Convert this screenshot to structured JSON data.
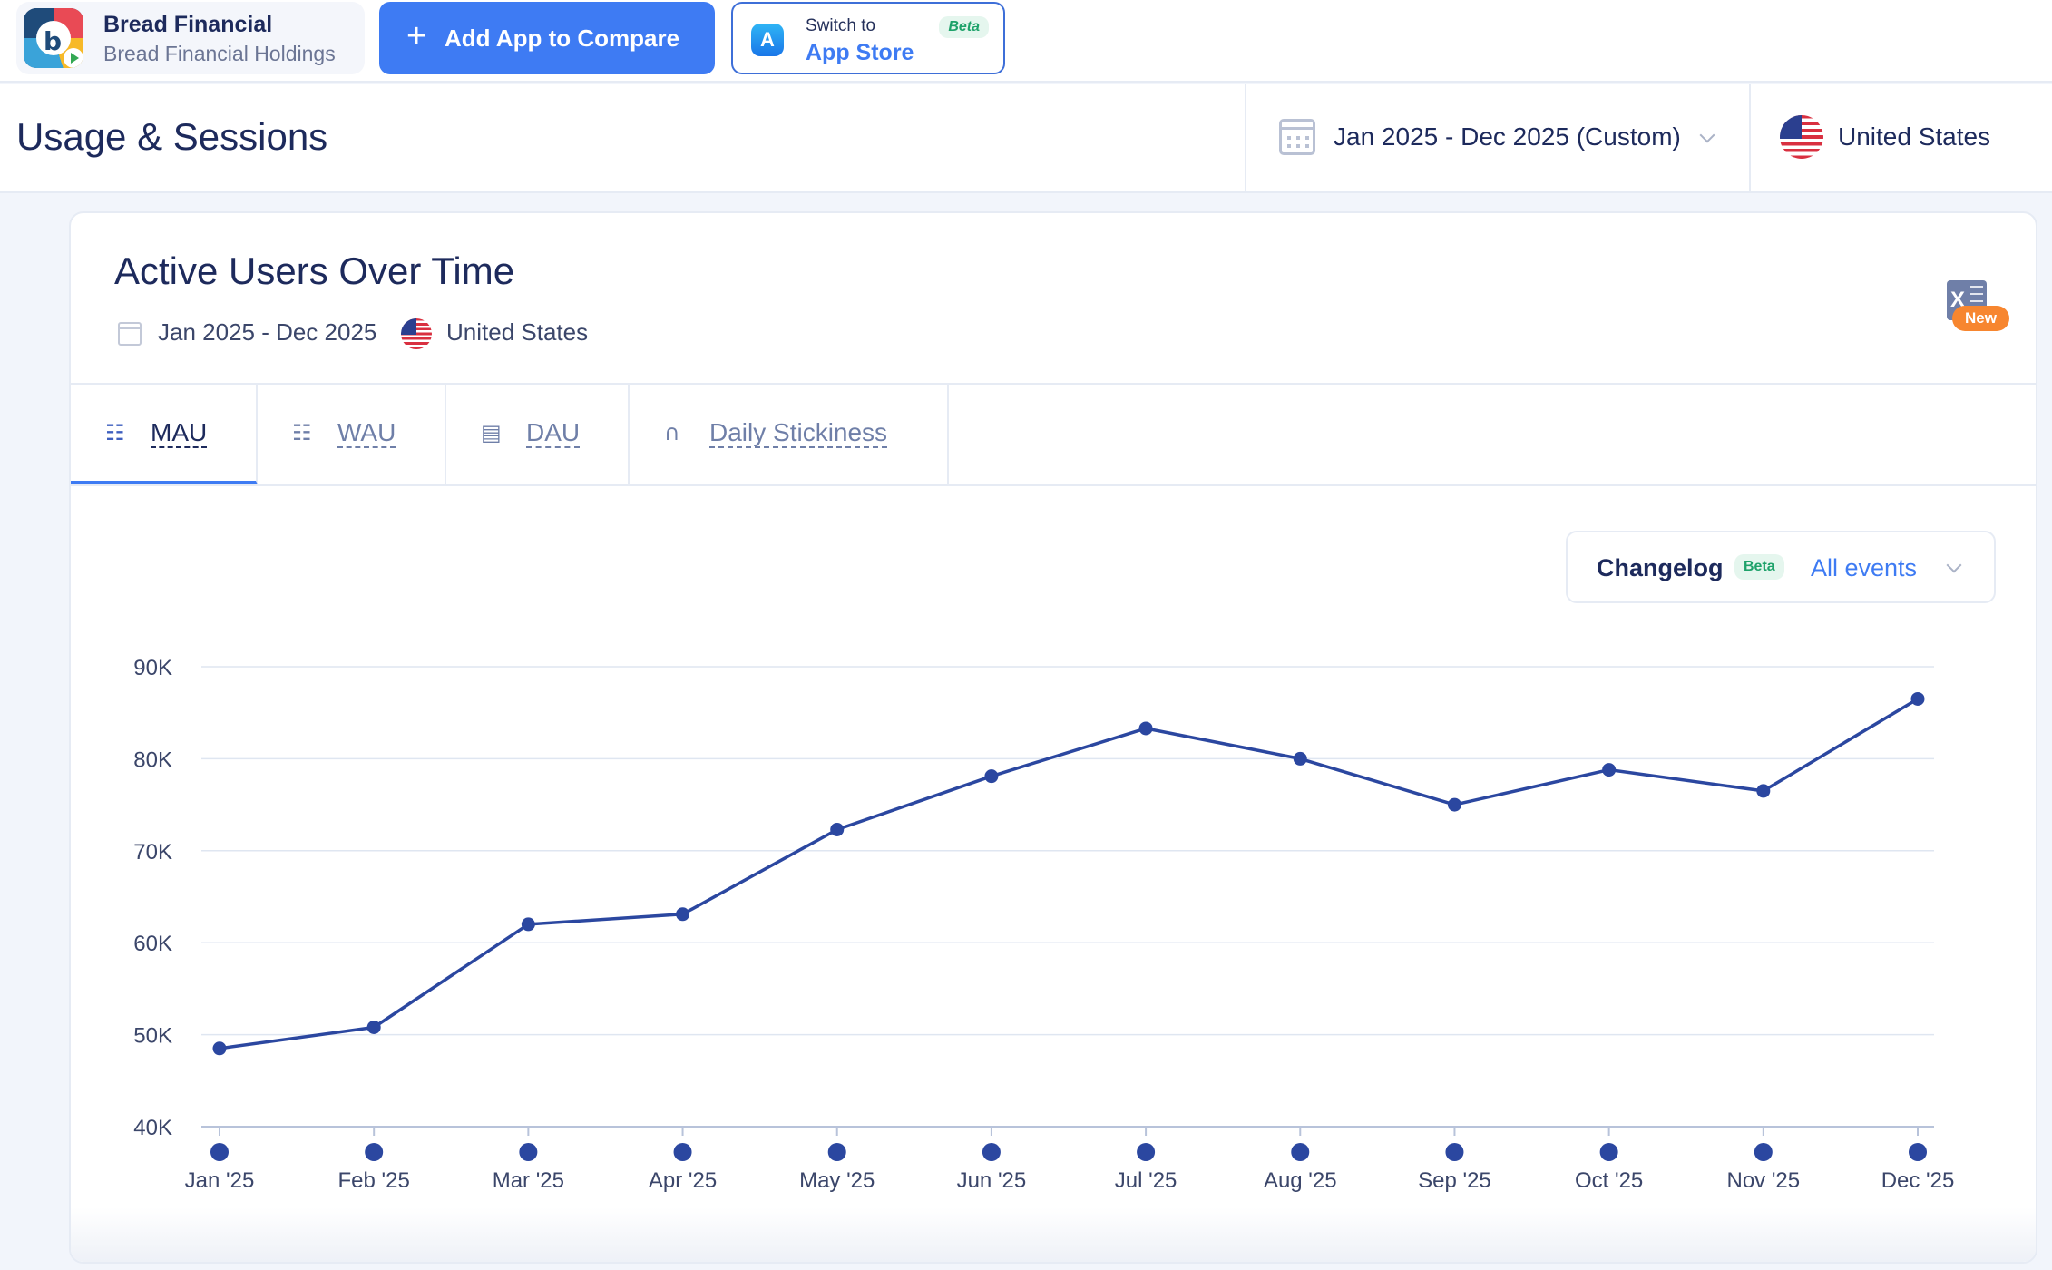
{
  "app": {
    "name": "Bread Financial",
    "developer": "Bread Financial Holdings"
  },
  "toolbar": {
    "add_label": "Add App to Compare",
    "switch_to": "Switch to",
    "switch_store": "App Store",
    "switch_badge": "Beta"
  },
  "header": {
    "title": "Usage & Sessions",
    "date_range": "Jan 2025 - Dec 2025 (Custom)",
    "country": "United States"
  },
  "card": {
    "title": "Active Users Over Time",
    "date_range": "Jan 2025 - Dec 2025",
    "country": "United States",
    "export_badge": "New",
    "tabs": [
      {
        "label": "MAU",
        "icon": "calendar-user-icon",
        "active": true
      },
      {
        "label": "WAU",
        "icon": "calendar-user-icon",
        "active": false
      },
      {
        "label": "DAU",
        "icon": "bar-user-icon",
        "active": false
      },
      {
        "label": "Daily Stickiness",
        "icon": "magnet-icon",
        "active": false
      }
    ],
    "changelog": {
      "label": "Changelog",
      "badge": "Beta",
      "value": "All events"
    }
  },
  "colors": {
    "accent": "#3e7bf3",
    "line": "#2b47a0",
    "badge_new": "#f7862f",
    "beta_text": "#1ea26a"
  },
  "chart_data": {
    "type": "line",
    "categories": [
      "Jan '25",
      "Feb '25",
      "Mar '25",
      "Apr '25",
      "May '25",
      "Jun '25",
      "Jul '25",
      "Aug '25",
      "Sep '25",
      "Oct '25",
      "Nov '25",
      "Dec '25"
    ],
    "series": [
      {
        "values": [
          48500,
          50800,
          62000,
          63100,
          72300,
          78100,
          83300,
          80000,
          75000,
          78800,
          76500,
          86500
        ]
      }
    ],
    "ylim": [
      40000,
      90000
    ],
    "yticks": [
      "40K",
      "50K",
      "60K",
      "70K",
      "80K",
      "90K"
    ],
    "grid": true,
    "legend": "none"
  }
}
